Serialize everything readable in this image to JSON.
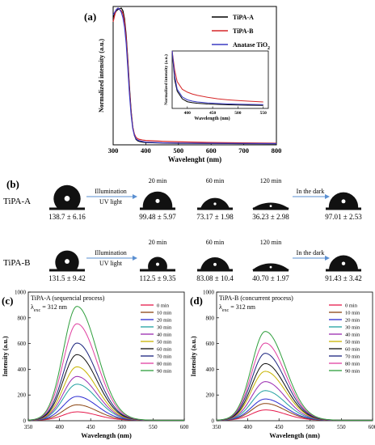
{
  "panel_a": {
    "label": "(a)",
    "chart_data": {
      "type": "line",
      "xlabel": "Wavelenght (nm)",
      "ylabel": "Normalized intensity (a.u.)",
      "xlim": [
        300,
        800
      ],
      "xticks": [
        300,
        400,
        500,
        600,
        700,
        800
      ],
      "ylim": [
        0,
        1
      ],
      "grid": false,
      "legend_position": "top-right",
      "series": [
        {
          "name": "TiPA-A",
          "color": "#000000",
          "x": [
            300,
            305,
            310,
            315,
            320,
            325,
            330,
            335,
            340,
            345,
            350,
            355,
            360,
            365,
            370,
            375,
            380,
            390,
            400,
            450,
            500,
            600,
            700,
            800
          ],
          "y": [
            0.93,
            0.96,
            0.98,
            0.99,
            0.995,
            1.0,
            0.98,
            0.92,
            0.8,
            0.62,
            0.42,
            0.25,
            0.13,
            0.07,
            0.04,
            0.03,
            0.025,
            0.02,
            0.017,
            0.013,
            0.011,
            0.01,
            0.009,
            0.008
          ]
        },
        {
          "name": "TiPA-B",
          "color": "#d62728",
          "x": [
            300,
            305,
            310,
            315,
            320,
            325,
            330,
            335,
            340,
            345,
            350,
            355,
            360,
            365,
            370,
            375,
            380,
            390,
            400,
            450,
            500,
            600,
            700,
            800
          ],
          "y": [
            0.9,
            0.95,
            0.99,
            1.0,
            0.99,
            0.98,
            0.96,
            0.9,
            0.78,
            0.6,
            0.4,
            0.24,
            0.13,
            0.08,
            0.055,
            0.045,
            0.04,
            0.035,
            0.032,
            0.026,
            0.022,
            0.017,
            0.014,
            0.012
          ]
        },
        {
          "name": "Anatase TiO",
          "subscript": "2",
          "color": "#3b3bc4",
          "x": [
            300,
            305,
            310,
            315,
            320,
            325,
            330,
            335,
            340,
            345,
            350,
            355,
            360,
            365,
            370,
            375,
            380,
            390,
            400,
            450,
            500,
            600,
            700,
            800
          ],
          "y": [
            0.95,
            0.97,
            0.99,
            1.0,
            0.99,
            0.97,
            0.93,
            0.86,
            0.74,
            0.56,
            0.37,
            0.22,
            0.12,
            0.07,
            0.045,
            0.035,
            0.03,
            0.025,
            0.02,
            0.015,
            0.013,
            0.011,
            0.01,
            0.009
          ]
        }
      ],
      "inset": {
        "xlabel": "Wavelength (nm)",
        "ylabel": "Normalized intensity (a.u.)",
        "xlim": [
          370,
          560
        ],
        "xticks": [
          400,
          450,
          500,
          550
        ],
        "ylim": [
          0,
          0.3
        ],
        "series": [
          {
            "name": "TiPA-A",
            "color": "#000000",
            "x": [
              370,
              375,
              380,
              390,
              400,
              410,
              420,
              440,
              460,
              480,
              500,
              520,
              550
            ],
            "y": [
              0.3,
              0.15,
              0.09,
              0.05,
              0.035,
              0.03,
              0.027,
              0.023,
              0.021,
              0.019,
              0.018,
              0.017,
              0.016
            ]
          },
          {
            "name": "TiPA-B",
            "color": "#d62728",
            "x": [
              370,
              375,
              380,
              390,
              400,
              410,
              420,
              440,
              460,
              480,
              500,
              520,
              550
            ],
            "y": [
              0.3,
              0.2,
              0.14,
              0.1,
              0.085,
              0.075,
              0.068,
              0.058,
              0.05,
              0.045,
              0.041,
              0.038,
              0.034
            ]
          },
          {
            "name": "Anatase TiO2",
            "color": "#3b3bc4",
            "x": [
              370,
              375,
              380,
              390,
              400,
              410,
              420,
              440,
              460,
              480,
              500,
              520,
              550
            ],
            "y": [
              0.3,
              0.17,
              0.1,
              0.06,
              0.045,
              0.038,
              0.034,
              0.029,
              0.026,
              0.024,
              0.022,
              0.021,
              0.02
            ]
          }
        ]
      }
    }
  },
  "panel_b": {
    "label": "(b)",
    "rows": [
      {
        "sample": "TiPA-A",
        "arrow_left_top": "Illumination",
        "arrow_left_bottom": "UV light",
        "arrow_right_top": "In the dark",
        "drops": [
          {
            "time": "",
            "angle": "138.7 ± 6.16",
            "contact_angle": 138.7
          },
          {
            "time": "20 min",
            "angle": "99.48 ± 5.97",
            "contact_angle": 99.48
          },
          {
            "time": "60 min",
            "angle": "73.17 ± 1.98",
            "contact_angle": 73.17
          },
          {
            "time": "120 min",
            "angle": "36.23 ± 2.98",
            "contact_angle": 36.23
          },
          {
            "time": "",
            "angle": "97.01 ± 2.53",
            "contact_angle": 97.01
          }
        ]
      },
      {
        "sample": "TiPA-B",
        "arrow_left_top": "Illumination",
        "arrow_left_bottom": "UV light",
        "arrow_right_top": "In the dark",
        "drops": [
          {
            "time": "",
            "angle": "131.5 ± 9.42",
            "contact_angle": 131.5
          },
          {
            "time": "20 min",
            "angle": "112.5 ± 9.35",
            "contact_angle": 112.5
          },
          {
            "time": "60 min",
            "angle": "83.08 ± 10.4",
            "contact_angle": 83.08
          },
          {
            "time": "120 min",
            "angle": "40.70 ± 1.97",
            "contact_angle": 40.7
          },
          {
            "time": "",
            "angle": "91.43 ± 3.42",
            "contact_angle": 91.43
          }
        ]
      }
    ]
  },
  "panel_c": {
    "label": "(c)",
    "title": "TiPA-A (sequencial process)",
    "excitation_prefix": "λ",
    "excitation_sub": "exc",
    "excitation_value": "= 312 nm",
    "chart_data": {
      "type": "line",
      "xlabel": "Wavelength (nm)",
      "ylabel": "Intensity (a.u.)",
      "xlim": [
        350,
        600
      ],
      "xticks": [
        350,
        400,
        450,
        500,
        550,
        600
      ],
      "ylim": [
        0,
        1000
      ],
      "yticks": [
        0,
        200,
        400,
        600,
        800,
        1000
      ],
      "peak_x": 428,
      "legend_position": "top-right",
      "series": [
        {
          "name": "0 min",
          "peak": 65,
          "color": "#e6194b"
        },
        {
          "name": "10 min",
          "peak": 120,
          "color": "#8b4513"
        },
        {
          "name": "20 min",
          "peak": 185,
          "color": "#2b2bd1"
        },
        {
          "name": "30 min",
          "peak": 280,
          "color": "#20a0a0"
        },
        {
          "name": "40 min",
          "peak": 340,
          "color": "#9a2bb0"
        },
        {
          "name": "50 min",
          "peak": 415,
          "color": "#c8b400"
        },
        {
          "name": "60 min",
          "peak": 510,
          "color": "#101010"
        },
        {
          "name": "70 min",
          "peak": 600,
          "color": "#1a237e"
        },
        {
          "name": "80 min",
          "peak": 750,
          "color": "#e040a0"
        },
        {
          "name": "90 min",
          "peak": 885,
          "color": "#2e9e3c"
        }
      ]
    }
  },
  "panel_d": {
    "label": "(d)",
    "title": "TiPA-B (concurrent process)",
    "excitation_prefix": "λ",
    "excitation_sub": "exc",
    "excitation_value": "= 312 nm",
    "chart_data": {
      "type": "line",
      "xlabel": "Wavelength (nm)",
      "ylabel": "Intensity (a.u.)",
      "xlim": [
        350,
        600
      ],
      "xticks": [
        350,
        400,
        450,
        500,
        550,
        600
      ],
      "ylim": [
        0,
        1000
      ],
      "yticks": [
        0,
        200,
        400,
        600,
        800,
        1000
      ],
      "peak_x": 428,
      "legend_position": "top-right",
      "series": [
        {
          "name": "0 min",
          "peak": 80,
          "color": "#e6194b"
        },
        {
          "name": "10 min",
          "peak": 130,
          "color": "#8b4513"
        },
        {
          "name": "20 min",
          "peak": 165,
          "color": "#2b2bd1"
        },
        {
          "name": "30 min",
          "peak": 230,
          "color": "#20a0a0"
        },
        {
          "name": "40 min",
          "peak": 300,
          "color": "#9a2bb0"
        },
        {
          "name": "50 min",
          "peak": 380,
          "color": "#c8b400"
        },
        {
          "name": "60 min",
          "peak": 440,
          "color": "#101010"
        },
        {
          "name": "70 min",
          "peak": 520,
          "color": "#1a237e"
        },
        {
          "name": "80 min",
          "peak": 600,
          "color": "#e040a0"
        },
        {
          "name": "90 min",
          "peak": 690,
          "color": "#2e9e3c"
        }
      ]
    }
  }
}
